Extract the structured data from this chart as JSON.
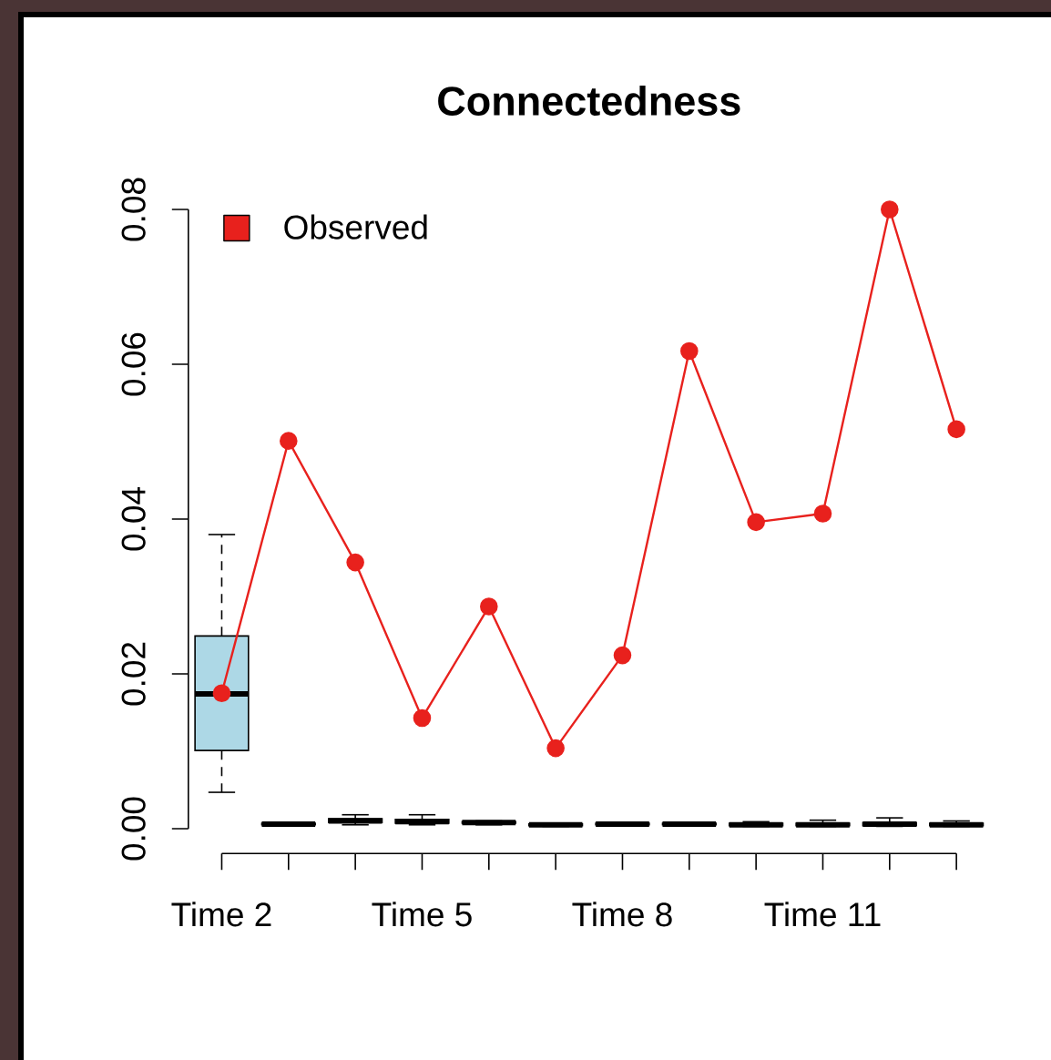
{
  "chart_data": {
    "type": "box",
    "title": "Connectedness",
    "categories": [
      "Time 2",
      null,
      null,
      "Time 5",
      null,
      null,
      "Time 8",
      null,
      null,
      "Time 11",
      null,
      null
    ],
    "ylim": [
      0,
      0.08
    ],
    "yticks": [
      {
        "value": 0,
        "label": "0.00"
      },
      {
        "value": 0.02,
        "label": "0.02"
      },
      {
        "value": 0.04,
        "label": "0.04"
      },
      {
        "value": 0.06,
        "label": "0.06"
      },
      {
        "value": 0.08,
        "label": "0.08"
      }
    ],
    "legend": "top left",
    "series": [
      {
        "color": "#add8e6",
        "boxes": [
          {
            "low": 0.0047,
            "q1": 0.0101,
            "median": 0.0174,
            "q3": 0.0249,
            "high": 0.038
          },
          {
            "low": 0.0004,
            "q1": 0.0005,
            "median": 0.0006,
            "q3": 0.0007,
            "high": 0.0008
          },
          {
            "low": 0.0005,
            "q1": 0.0008,
            "median": 0.001,
            "q3": 0.0013,
            "high": 0.0018
          },
          {
            "low": 0.0005,
            "q1": 0.0007,
            "median": 0.0009,
            "q3": 0.0012,
            "high": 0.0018
          },
          {
            "low": 0.0005,
            "q1": 0.0007,
            "median": 0.0008,
            "q3": 0.0009,
            "high": 0.001
          },
          {
            "low": 0.0003,
            "q1": 0.0004,
            "median": 0.0005,
            "q3": 0.0006,
            "high": 0.0007
          },
          {
            "low": 0.0004,
            "q1": 0.0005,
            "median": 0.0006,
            "q3": 0.0007,
            "high": 0.0008
          },
          {
            "low": 0.0004,
            "q1": 0.0005,
            "median": 0.0006,
            "q3": 0.0007,
            "high": 0.0008
          },
          {
            "low": 0.0003,
            "q1": 0.0004,
            "median": 0.0005,
            "q3": 0.0007,
            "high": 0.0009
          },
          {
            "low": 0.0003,
            "q1": 0.0004,
            "median": 0.0005,
            "q3": 0.0007,
            "high": 0.0011
          },
          {
            "low": 0.0003,
            "q1": 0.0004,
            "median": 0.0006,
            "q3": 0.0008,
            "high": 0.0014
          },
          {
            "low": 0.0003,
            "q1": 0.0004,
            "median": 0.0005,
            "q3": 0.0007,
            "high": 0.001
          }
        ]
      },
      {
        "type": "line",
        "name": "Observed",
        "color": "#e8211d",
        "marker": "circle",
        "values": [
          0.0175,
          0.0501,
          0.0344,
          0.0143,
          0.0287,
          0.0104,
          0.0224,
          0.0617,
          0.0396,
          0.0407,
          0.08,
          0.0516
        ]
      }
    ]
  }
}
